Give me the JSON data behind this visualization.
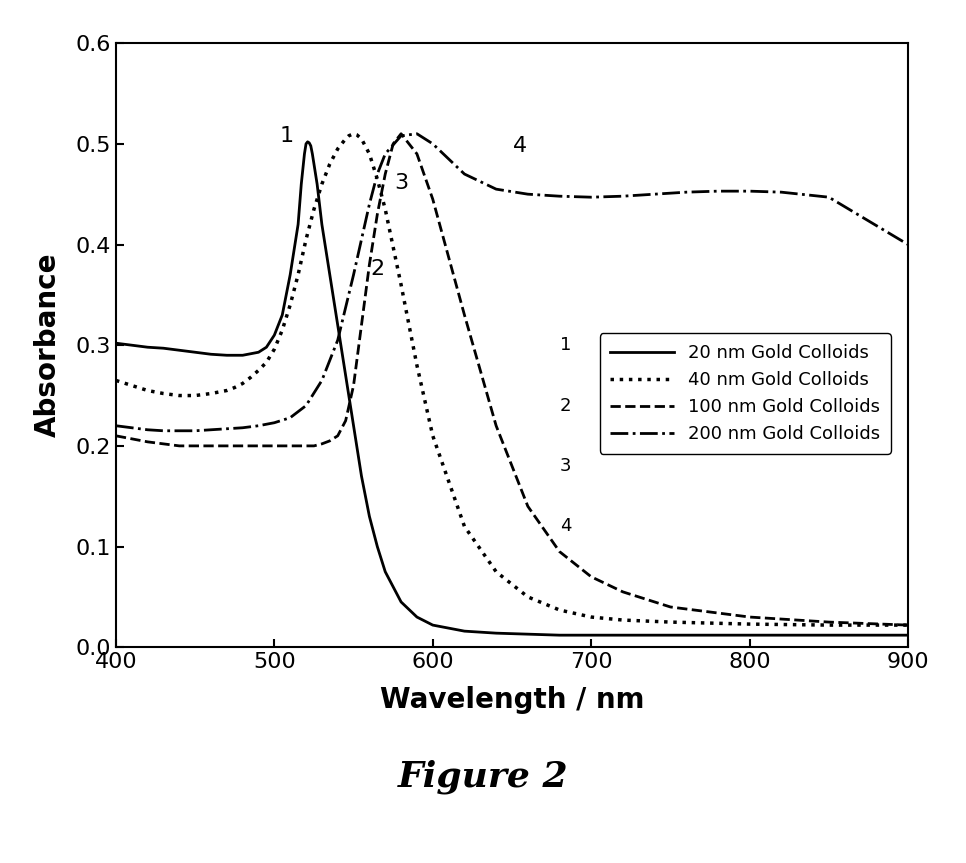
{
  "xlim": [
    400,
    900
  ],
  "ylim": [
    0.0,
    0.6
  ],
  "xlabel": "Wavelength / nm",
  "ylabel": "Absorbance",
  "xticks": [
    400,
    500,
    600,
    700,
    800,
    900
  ],
  "yticks": [
    0.0,
    0.1,
    0.2,
    0.3,
    0.4,
    0.5,
    0.6
  ],
  "figure_caption": "Figure 2",
  "legend_entries": [
    {
      "label": "20 nm Gold Colloids",
      "number": "1",
      "linestyle": "solid"
    },
    {
      "label": "40 nm Gold Colloids",
      "number": "2",
      "linestyle": "dotted"
    },
    {
      "label": "100 nm Gold Colloids",
      "number": "3",
      "linestyle": "dashed"
    },
    {
      "label": "200 nm Gold Colloids",
      "number": "4",
      "linestyle": "dashdot"
    }
  ],
  "curve1_x": [
    400,
    410,
    420,
    430,
    440,
    450,
    460,
    470,
    480,
    490,
    495,
    500,
    505,
    510,
    515,
    517,
    519,
    520,
    521,
    522,
    523,
    524,
    525,
    527,
    530,
    535,
    540,
    545,
    550,
    555,
    560,
    565,
    570,
    580,
    590,
    600,
    620,
    640,
    660,
    680,
    700,
    720,
    750,
    800,
    850,
    900
  ],
  "curve1_y": [
    0.302,
    0.3,
    0.298,
    0.297,
    0.295,
    0.293,
    0.291,
    0.29,
    0.29,
    0.293,
    0.298,
    0.31,
    0.33,
    0.37,
    0.42,
    0.46,
    0.49,
    0.5,
    0.502,
    0.501,
    0.498,
    0.49,
    0.48,
    0.46,
    0.42,
    0.37,
    0.32,
    0.27,
    0.22,
    0.17,
    0.13,
    0.1,
    0.075,
    0.045,
    0.03,
    0.022,
    0.016,
    0.014,
    0.013,
    0.012,
    0.012,
    0.012,
    0.012,
    0.012,
    0.012,
    0.012
  ],
  "curve2_x": [
    400,
    410,
    420,
    430,
    440,
    450,
    460,
    470,
    475,
    480,
    485,
    490,
    495,
    500,
    505,
    510,
    515,
    520,
    525,
    530,
    535,
    540,
    545,
    547,
    550,
    552,
    555,
    560,
    565,
    570,
    580,
    590,
    600,
    620,
    640,
    660,
    680,
    700,
    720,
    750,
    800,
    850,
    900
  ],
  "curve2_y": [
    0.265,
    0.26,
    0.255,
    0.252,
    0.25,
    0.25,
    0.252,
    0.255,
    0.258,
    0.262,
    0.268,
    0.275,
    0.283,
    0.296,
    0.315,
    0.34,
    0.37,
    0.405,
    0.435,
    0.46,
    0.48,
    0.495,
    0.505,
    0.508,
    0.51,
    0.509,
    0.505,
    0.49,
    0.465,
    0.435,
    0.36,
    0.28,
    0.21,
    0.12,
    0.075,
    0.05,
    0.037,
    0.03,
    0.027,
    0.025,
    0.023,
    0.022,
    0.022
  ],
  "curve3_x": [
    400,
    410,
    420,
    430,
    440,
    450,
    460,
    470,
    480,
    490,
    500,
    505,
    510,
    515,
    520,
    525,
    530,
    535,
    540,
    545,
    550,
    555,
    560,
    565,
    570,
    575,
    580,
    590,
    600,
    620,
    640,
    660,
    680,
    700,
    720,
    750,
    800,
    850,
    900
  ],
  "curve3_y": [
    0.21,
    0.207,
    0.204,
    0.202,
    0.2,
    0.2,
    0.2,
    0.2,
    0.2,
    0.2,
    0.2,
    0.2,
    0.2,
    0.2,
    0.2,
    0.2,
    0.202,
    0.205,
    0.21,
    0.225,
    0.26,
    0.32,
    0.38,
    0.43,
    0.47,
    0.5,
    0.51,
    0.49,
    0.445,
    0.33,
    0.22,
    0.14,
    0.095,
    0.07,
    0.055,
    0.04,
    0.03,
    0.025,
    0.022
  ],
  "curve4_x": [
    400,
    410,
    420,
    430,
    440,
    450,
    460,
    470,
    480,
    490,
    500,
    510,
    520,
    530,
    540,
    550,
    560,
    565,
    570,
    580,
    590,
    600,
    620,
    640,
    660,
    680,
    700,
    720,
    740,
    760,
    780,
    800,
    820,
    850,
    900
  ],
  "curve4_y": [
    0.22,
    0.218,
    0.216,
    0.215,
    0.215,
    0.215,
    0.216,
    0.217,
    0.218,
    0.22,
    0.223,
    0.228,
    0.24,
    0.265,
    0.305,
    0.37,
    0.44,
    0.47,
    0.49,
    0.508,
    0.51,
    0.5,
    0.47,
    0.455,
    0.45,
    0.448,
    0.447,
    0.448,
    0.45,
    0.452,
    0.453,
    0.453,
    0.452,
    0.447,
    0.4
  ],
  "line_color": "#000000",
  "linewidth": 1.5,
  "figure_bg": "#ffffff"
}
